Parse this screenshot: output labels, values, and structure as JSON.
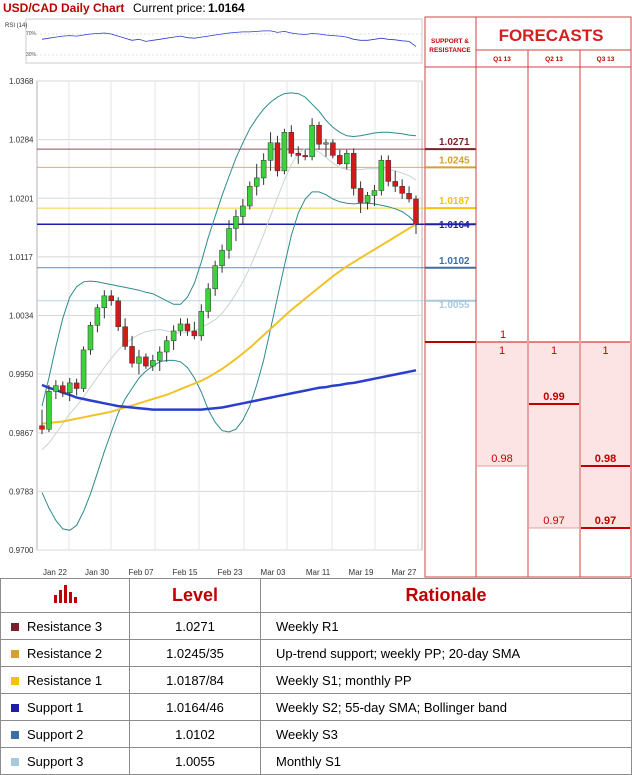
{
  "header": {
    "title": "USD/CAD Daily Chart",
    "price_label": "Current price:",
    "price": "1.0164"
  },
  "rsi": {
    "label": "RSI (14)",
    "levels": [
      "70%",
      "30%"
    ]
  },
  "panel": {
    "sr_title": [
      "SUPPORT &",
      "RESISTANCE"
    ],
    "forecast_title": "FORECASTS",
    "quarters": [
      "Q1 13",
      "Q2 13",
      "Q3 13"
    ]
  },
  "chart_data": {
    "type": "candlestick",
    "title": "USD/CAD Daily Chart",
    "y_ticks": [
      "1.0368",
      "1.0284",
      "1.0201",
      "1.0117",
      "1.0034",
      "0.9950",
      "0.9867",
      "0.9783",
      "0.9700"
    ],
    "ylim": [
      0.97,
      1.0368
    ],
    "x_ticks": [
      "Jan 22",
      "Jan 30",
      "Feb 07",
      "Feb 15",
      "Feb 23",
      "Mar 03",
      "Mar 11",
      "Mar 19",
      "Mar 27"
    ],
    "candles": [
      [
        0.9877,
        0.99,
        0.9865,
        0.9872
      ],
      [
        0.9872,
        0.9935,
        0.9868,
        0.9926
      ],
      [
        0.9926,
        0.9942,
        0.9915,
        0.9934
      ],
      [
        0.9934,
        0.994,
        0.9918,
        0.9924
      ],
      [
        0.9924,
        0.9945,
        0.9912,
        0.9938
      ],
      [
        0.9938,
        0.9944,
        0.992,
        0.993
      ],
      [
        0.993,
        0.999,
        0.9925,
        0.9985
      ],
      [
        0.9985,
        1.0025,
        0.9978,
        1.002
      ],
      [
        1.002,
        1.005,
        1.001,
        1.0045
      ],
      [
        1.0045,
        1.007,
        1.003,
        1.0062
      ],
      [
        1.0062,
        1.007,
        1.0048,
        1.0055
      ],
      [
        1.0055,
        1.006,
        1.0012,
        1.0018
      ],
      [
        1.0018,
        1.003,
        0.9985,
        0.999
      ],
      [
        0.999,
        1.0005,
        0.996,
        0.9966
      ],
      [
        0.9966,
        0.9985,
        0.995,
        0.9975
      ],
      [
        0.9975,
        0.998,
        0.9958,
        0.9962
      ],
      [
        0.9962,
        0.9978,
        0.9955,
        0.997
      ],
      [
        0.997,
        0.999,
        0.9955,
        0.9982
      ],
      [
        0.9982,
        1.0005,
        0.9968,
        0.9998
      ],
      [
        0.9998,
        1.002,
        0.9985,
        1.0012
      ],
      [
        1.0012,
        1.003,
        1.0005,
        1.0022
      ],
      [
        1.0022,
        1.003,
        1.0005,
        1.0012
      ],
      [
        1.0012,
        1.0025,
        1.0,
        1.0005
      ],
      [
        1.0005,
        1.005,
        0.9998,
        1.004
      ],
      [
        1.004,
        1.008,
        1.003,
        1.0072
      ],
      [
        1.0072,
        1.0112,
        1.0062,
        1.0105
      ],
      [
        1.0105,
        1.0135,
        1.0095,
        1.0127
      ],
      [
        1.0127,
        1.017,
        1.0115,
        1.0158
      ],
      [
        1.0158,
        1.0185,
        1.014,
        1.0175
      ],
      [
        1.0175,
        1.02,
        1.0165,
        1.019
      ],
      [
        1.019,
        1.0225,
        1.0185,
        1.0218
      ],
      [
        1.0218,
        1.025,
        1.0205,
        1.023
      ],
      [
        1.023,
        1.0265,
        1.022,
        1.0255
      ],
      [
        1.0255,
        1.0295,
        1.024,
        1.028
      ],
      [
        1.028,
        1.029,
        1.0232,
        1.024
      ],
      [
        1.024,
        1.03,
        1.0235,
        1.0295
      ],
      [
        1.0295,
        1.0305,
        1.026,
        1.0265
      ],
      [
        1.0265,
        1.0275,
        1.025,
        1.0262
      ],
      [
        1.0262,
        1.027,
        1.0255,
        1.026
      ],
      [
        1.026,
        1.0315,
        1.0255,
        1.0305
      ],
      [
        1.0305,
        1.031,
        1.027,
        1.0278
      ],
      [
        1.0278,
        1.0285,
        1.026,
        1.028
      ],
      [
        1.028,
        1.0285,
        1.0258,
        1.0262
      ],
      [
        1.0262,
        1.027,
        1.0248,
        1.025
      ],
      [
        1.025,
        1.027,
        1.0242,
        1.0265
      ],
      [
        1.0265,
        1.0272,
        1.0205,
        1.0215
      ],
      [
        1.0215,
        1.0225,
        1.018,
        1.0195
      ],
      [
        1.0195,
        1.021,
        1.0185,
        1.0205
      ],
      [
        1.0205,
        1.022,
        1.019,
        1.0212
      ],
      [
        1.0212,
        1.0262,
        1.0205,
        1.0255
      ],
      [
        1.0255,
        1.0262,
        1.0218,
        1.0225
      ],
      [
        1.0225,
        1.024,
        1.021,
        1.0218
      ],
      [
        1.0218,
        1.0228,
        1.02,
        1.0208
      ],
      [
        1.0208,
        1.0218,
        1.0195,
        1.02
      ],
      [
        1.02,
        1.0205,
        1.015,
        1.0164
      ]
    ],
    "sma55": [
      0.9935,
      0.9931,
      0.9928,
      0.9924,
      0.9921,
      0.9917,
      0.9915,
      0.9913,
      0.9911,
      0.9909,
      0.9907,
      0.9905,
      0.9904,
      0.9903,
      0.9902,
      0.9901,
      0.99,
      0.99,
      0.99,
      0.99,
      0.99,
      0.99,
      0.99,
      0.99,
      0.9901,
      0.9902,
      0.9903,
      0.9905,
      0.9907,
      0.9909,
      0.9911,
      0.9913,
      0.9915,
      0.9917,
      0.9919,
      0.9921,
      0.9923,
      0.9925,
      0.9927,
      0.9929,
      0.9931,
      0.9932,
      0.9934,
      0.9935,
      0.9937,
      0.9938,
      0.994,
      0.9942,
      0.9944,
      0.9946,
      0.9948,
      0.995,
      0.9952,
      0.9954,
      0.9956
    ],
    "sma20": [
      0.988,
      0.9881,
      0.9882,
      0.9883,
      0.9885,
      0.9887,
      0.9889,
      0.9891,
      0.9893,
      0.9895,
      0.9897,
      0.99,
      0.9903,
      0.9906,
      0.9909,
      0.9912,
      0.9915,
      0.9918,
      0.9921,
      0.9925,
      0.9929,
      0.9933,
      0.9937,
      0.9941,
      0.9946,
      0.9952,
      0.9958,
      0.9965,
      0.9972,
      0.998,
      0.9988,
      0.9997,
      1.0006,
      1.0015,
      1.0024,
      1.0033,
      1.0042,
      1.005,
      1.0058,
      1.0066,
      1.0074,
      1.0082,
      1.009,
      1.0097,
      1.0104,
      1.011,
      1.0116,
      1.0122,
      1.0128,
      1.0134,
      1.014,
      1.0146,
      1.0152,
      1.0158,
      1.0164
    ],
    "boll_upper": [
      0.9905,
      0.9945,
      0.999,
      1.003,
      1.006,
      1.0075,
      1.0082,
      1.0083,
      1.0082,
      1.008,
      1.0078,
      1.0076,
      1.0074,
      1.0072,
      1.007,
      1.0067,
      1.0065,
      1.006,
      1.0055,
      1.005,
      1.005,
      1.006,
      1.008,
      1.011,
      1.0145,
      1.0175,
      1.0205,
      1.0232,
      1.0258,
      1.028,
      1.03,
      1.0315,
      1.0328,
      1.0338,
      1.0345,
      1.035,
      1.0351,
      1.035,
      1.0345,
      1.0335,
      1.0325,
      1.0312,
      1.0302,
      1.0295,
      1.029,
      1.0289,
      1.029,
      1.0292,
      1.0294,
      1.0295,
      1.0295,
      1.0294,
      1.0293,
      1.0291,
      1.029
    ],
    "boll_lower": [
      0.9782,
      0.976,
      0.9742,
      0.973,
      0.9728,
      0.9735,
      0.9755,
      0.978,
      0.981,
      0.984,
      0.9868,
      0.9895,
      0.9915,
      0.993,
      0.9945,
      0.9955,
      0.9962,
      0.9968,
      0.997,
      0.997,
      0.9968,
      0.996,
      0.9945,
      0.9925,
      0.99,
      0.9882,
      0.987,
      0.9868,
      0.9872,
      0.9885,
      0.9905,
      0.9935,
      0.997,
      1.0015,
      1.006,
      1.0105,
      1.0148,
      1.018,
      1.02,
      1.021,
      1.021,
      1.0206,
      1.02,
      1.0196,
      1.0194,
      1.0193,
      1.0194,
      1.0194,
      1.0193,
      1.0191,
      1.0189,
      1.0186,
      1.0182,
      1.0175,
      1.0165
    ],
    "boll_mid": [
      0.9843,
      0.9852,
      0.9866,
      0.988,
      0.9894,
      0.9905,
      0.9918,
      0.9932,
      0.9946,
      0.996,
      0.9973,
      0.9985,
      0.9994,
      1.0001,
      1.0007,
      1.0011,
      1.0013,
      1.0014,
      1.0012,
      1.001,
      1.0009,
      1.001,
      1.0012,
      1.0017,
      1.0022,
      1.0028,
      1.0037,
      1.005,
      1.0065,
      1.0082,
      1.0102,
      1.0125,
      1.0149,
      1.0176,
      1.0202,
      1.0227,
      1.0249,
      1.0265,
      1.0272,
      1.0272,
      1.0267,
      1.0259,
      1.0251,
      1.0245,
      1.0242,
      1.0241,
      1.0242,
      1.0243,
      1.0243,
      1.0243,
      1.0242,
      1.024,
      1.0237,
      1.0233,
      1.0227
    ],
    "rsi": [
      60,
      62,
      64,
      66,
      67,
      66,
      68,
      70,
      71,
      72,
      70,
      66,
      62,
      58,
      60,
      56,
      58,
      60,
      62,
      64,
      66,
      63,
      62,
      64,
      66,
      68,
      70,
      72,
      73,
      74,
      74,
      75,
      76,
      76,
      73,
      75,
      72,
      70,
      69,
      71,
      70,
      68,
      67,
      66,
      64,
      60,
      58,
      58,
      60,
      62,
      60,
      59,
      57,
      56,
      46
    ]
  },
  "sr_levels": [
    {
      "value": "1.0271",
      "price": 1.0271,
      "color": "#7a1f2b"
    },
    {
      "value": "1.0245",
      "price": 1.0245,
      "color": "#d4a030"
    },
    {
      "value": "1.0187",
      "price": 1.0187,
      "color": "#f4c20d"
    },
    {
      "value": "1.0164",
      "price": 1.0164,
      "color": "#1e1ea8"
    },
    {
      "value": "1.0102",
      "price": 1.0102,
      "color": "#3d6ea6"
    },
    {
      "value": "1.0055",
      "price": 1.0055,
      "color": "#a8c8dc"
    }
  ],
  "forecast_axis": {
    "top": 1,
    "bottom": 0.96
  },
  "forecasts": [
    {
      "quarter": "Q1 13",
      "low_label": "0.98",
      "low": 0.98,
      "high_label": "1",
      "high": 1.0,
      "bold": false
    },
    {
      "quarter": "Q2 13",
      "low_label": "0.97",
      "low": 0.97,
      "high_label": "1",
      "high": 1.0,
      "mid_label": "0.99",
      "mid": 0.99,
      "bold": false
    },
    {
      "quarter": "Q3 13",
      "low_label": "0.97",
      "low": 0.97,
      "high_label": "1",
      "high": 1.0,
      "mid_label": "0.98",
      "mid": 0.98,
      "bold": true
    }
  ],
  "forecast_marker": {
    "label": "1",
    "value": 1.0
  },
  "table": {
    "headers": [
      "",
      "Level",
      "Rationale"
    ],
    "rows": [
      {
        "label": "Resistance 3",
        "level": "1.0271",
        "rationale": "Weekly R1",
        "color": "#7a1f2b"
      },
      {
        "label": "Resistance 2",
        "level": "1.0245/35",
        "rationale": "Up-trend support; weekly PP; 20-day SMA",
        "color": "#d4a030"
      },
      {
        "label": "Resistance 1",
        "level": "1.0187/84",
        "rationale": "Weekly S1; monthly PP",
        "color": "#f4c20d"
      },
      {
        "label": "Support 1",
        "level": "1.0164/46",
        "rationale": "Weekly S2; 55-day SMA; Bollinger band",
        "color": "#1e1ea8"
      },
      {
        "label": "Support 2",
        "level": "1.0102",
        "rationale": "Weekly S3",
        "color": "#3d6ea6"
      },
      {
        "label": "Support 3",
        "level": "1.0055",
        "rationale": "Monthly S1",
        "color": "#a8c8dc"
      }
    ]
  }
}
